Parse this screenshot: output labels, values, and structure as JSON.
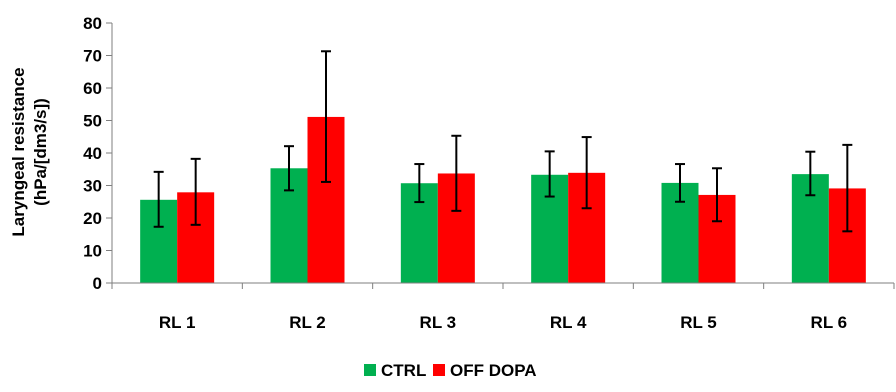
{
  "chart_data": {
    "type": "bar",
    "title": "",
    "ylabel_lines": [
      "Laryngeal resistance",
      "(hPa/[dm3/s])"
    ],
    "xlabel": "",
    "ylim": [
      0,
      80
    ],
    "yticks": [
      "0",
      "10",
      "20",
      "30",
      "40",
      "50",
      "60",
      "70",
      "80"
    ],
    "categories": [
      "RL 1",
      "RL 2",
      "RL 3",
      "RL 4",
      "RL 5",
      "RL 6"
    ],
    "series": [
      {
        "name": "CTRL",
        "color": "#00b050",
        "values": [
          25.6,
          35.3,
          30.7,
          33.3,
          30.8,
          33.5
        ],
        "err_low": [
          17.3,
          28.5,
          24.9,
          26.6,
          25.0,
          27.0
        ],
        "err_high": [
          34.2,
          42.1,
          36.6,
          40.5,
          36.6,
          40.4
        ]
      },
      {
        "name": "OFF DOPA",
        "color": "#ff0000",
        "values": [
          27.9,
          51.1,
          33.7,
          33.9,
          27.1,
          29.1
        ],
        "err_low": [
          17.9,
          31.1,
          22.2,
          23.0,
          19.0,
          15.9
        ],
        "err_high": [
          38.2,
          71.3,
          45.3,
          44.9,
          35.3,
          42.5
        ]
      }
    ],
    "grid": false,
    "legend_position": "bottom"
  }
}
